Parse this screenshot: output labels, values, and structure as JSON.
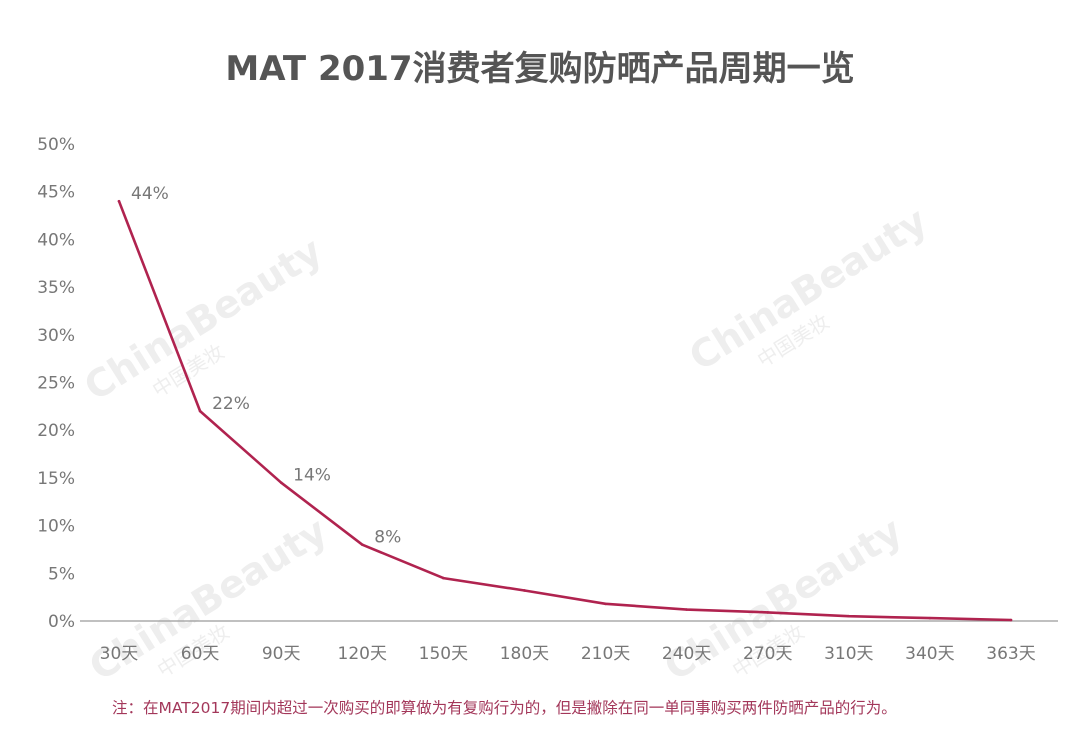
{
  "chart_data": {
    "type": "line",
    "title": "MAT 2017消费者复购防晒产品周期一览",
    "xlabel": "",
    "ylabel": "",
    "categories": [
      "30天",
      "60天",
      "90天",
      "120天",
      "150天",
      "180天",
      "210天",
      "240天",
      "270天",
      "310天",
      "340天",
      "363天"
    ],
    "series": [
      {
        "values": [
          44,
          22,
          14.5,
          8,
          4.5,
          3.2,
          1.8,
          1.2,
          0.9,
          0.5,
          0.3,
          0.1
        ],
        "data_labels": [
          "44%",
          "22%",
          "14%",
          "8%",
          "",
          "",
          "",
          "",
          "",
          "",
          "",
          ""
        ]
      }
    ],
    "ylim": [
      0,
      50
    ],
    "yticks": [
      "0%",
      "5%",
      "10%",
      "15%",
      "20%",
      "25%",
      "30%",
      "35%",
      "40%",
      "45%",
      "50%"
    ],
    "grid": false,
    "line_color": "#b0234f",
    "note": "注：在MAT2017期间内超过一次购买的即算做为有复购行为的，但是撇除在同一单同事购买两件防晒产品的行为。"
  },
  "watermark": {
    "text": "ChinaBeauty",
    "subtext": "中国美妆"
  }
}
